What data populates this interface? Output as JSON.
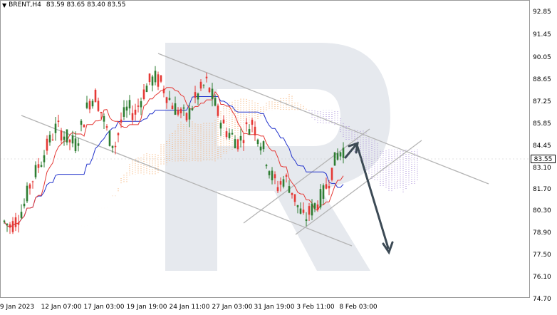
{
  "header": {
    "symbol": "BRENT,H4",
    "ohlc": "83.59 83.65 83.40 83.55"
  },
  "price_axis": {
    "labels": [
      "92.85",
      "91.45",
      "90.05",
      "88.65",
      "87.25",
      "85.85",
      "84.45",
      "83.10",
      "81.70",
      "80.30",
      "78.90",
      "77.50",
      "76.10",
      "74.70"
    ],
    "current_price": "83.55"
  },
  "time_axis": {
    "labels": [
      "9 Jan 2023",
      "12 Jan 07:00",
      "17 Jan 03:00",
      "19 Jan 19:00",
      "24 Jan 11:00",
      "27 Jan 03:00",
      "31 Jan 19:00",
      "3 Feb 11:00",
      "8 Feb 03:00"
    ]
  },
  "colors": {
    "bull": "#2e7d32",
    "bear": "#e53935",
    "tenkan": "#e53935",
    "kijun": "#2233cc",
    "cloud_orange": "#f5a560",
    "cloud_purple": "#a58ad8",
    "channel": "#b0b0b0",
    "arrow": "#3c4a55",
    "watermark": "#dfe3e8"
  },
  "chart_data": {
    "type": "candlestick",
    "instrument": "BRENT",
    "timeframe": "H4",
    "ylim": [
      74.7,
      92.85
    ],
    "last_price": 83.55,
    "ohlc_values": [
      83.59,
      83.65,
      83.4,
      83.55
    ],
    "close_path": [
      79.6,
      79.3,
      79.8,
      80.6,
      82.0,
      82.9,
      83.8,
      84.7,
      85.6,
      85.2,
      84.7,
      84.5,
      85.8,
      87.2,
      87.6,
      86.4,
      85.0,
      84.4,
      86.0,
      86.8,
      86.4,
      87.4,
      88.3,
      88.7,
      88.4,
      87.6,
      86.9,
      86.5,
      86.1,
      87.1,
      87.8,
      88.4,
      87.4,
      86.2,
      85.4,
      85.0,
      84.6,
      85.4,
      85.9,
      85.0,
      83.9,
      82.5,
      81.8,
      82.4,
      81.7,
      80.6,
      79.7,
      80.3,
      80.8,
      81.4,
      82.5,
      83.8,
      84.2
    ],
    "ichimoku": {
      "tenkan_sen": "red line",
      "kijun_sen": "blue line",
      "cloud": "orange/purple dotted"
    },
    "annotations": [
      "descending channel (gray lines)",
      "ascending channel (gray lines)",
      "arrow up to ~85.3 then down to ~77.6"
    ]
  }
}
